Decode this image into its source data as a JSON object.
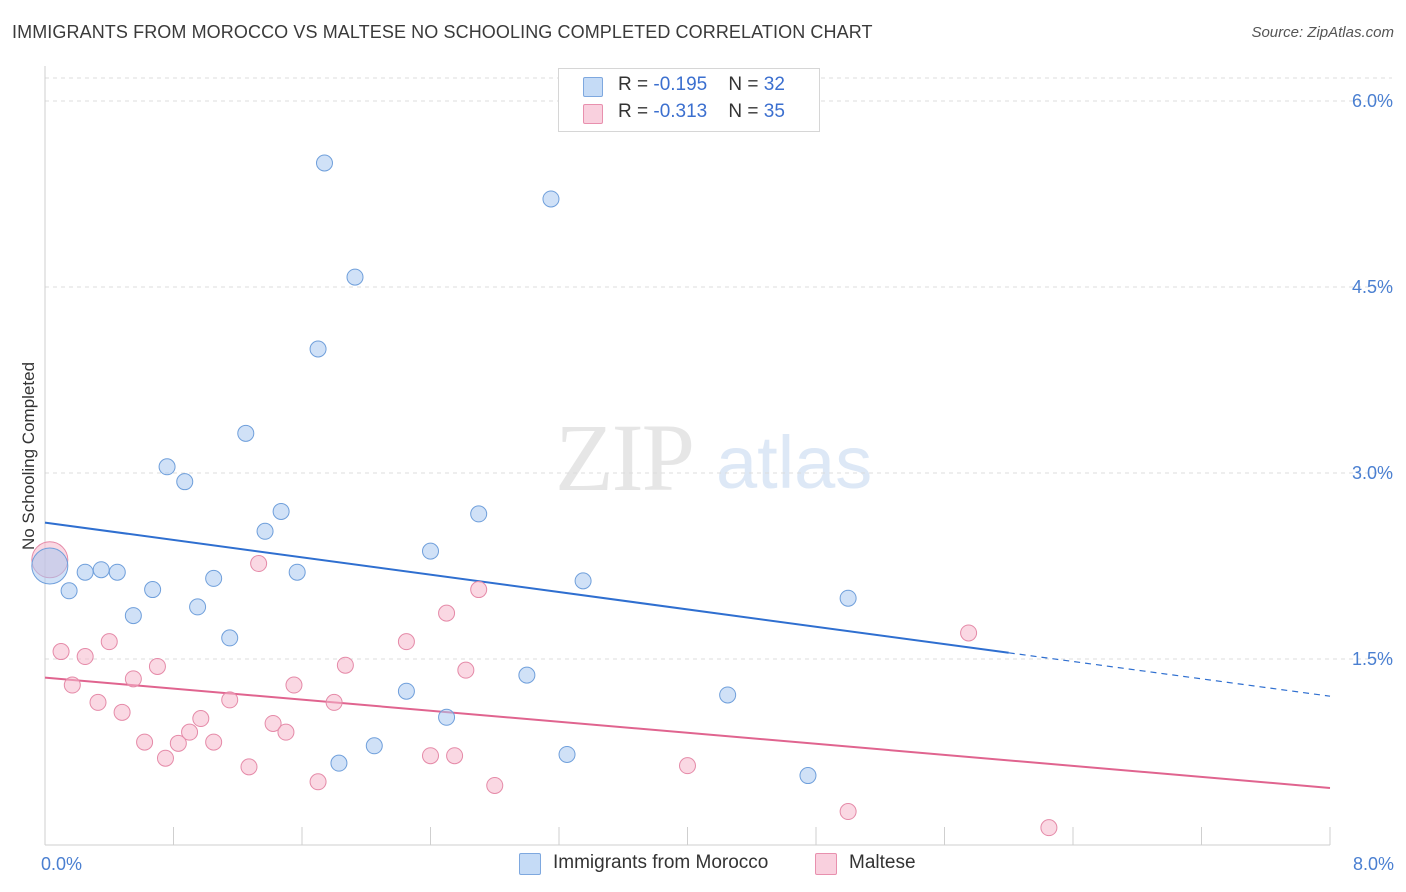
{
  "title": "IMMIGRANTS FROM MOROCCO VS MALTESE NO SCHOOLING COMPLETED CORRELATION CHART",
  "source": "Source: ZipAtlas.com",
  "watermark": {
    "zip": "ZIP",
    "atlas": "atlas"
  },
  "stats": [
    {
      "r_label": "R = ",
      "r_value": "-0.195",
      "n_label": "N = ",
      "n_value": "32",
      "color": "#aac8f0"
    },
    {
      "r_label": "R = ",
      "r_value": "-0.313",
      "n_label": "N = ",
      "n_value": "35",
      "color": "#f5b8cc"
    }
  ],
  "legend": [
    {
      "label": "Immigrants from Morocco",
      "color": "#aac8f0"
    },
    {
      "label": "Maltese",
      "color": "#f5b8cc"
    }
  ],
  "chart_data": {
    "type": "scatter",
    "title": "IMMIGRANTS FROM MOROCCO VS MALTESE NO SCHOOLING COMPLETED CORRELATION CHART",
    "xlabel": "",
    "ylabel": "No Schooling Completed",
    "xlim": [
      0,
      8
    ],
    "ylim": [
      0,
      6.25
    ],
    "x_tick_labels": [
      "0.0%",
      "8.0%"
    ],
    "y_tick_values": [
      1.5,
      3.0,
      4.5,
      6.0
    ],
    "y_tick_labels": [
      "1.5%",
      "3.0%",
      "4.5%",
      "6.0%"
    ],
    "grid": true,
    "legend_position": "bottom-center",
    "series": [
      {
        "name": "Immigrants from Morocco",
        "color": "#aac8f0",
        "stroke": "#6f9fdb",
        "line_color": "#2f6fd0",
        "trend": {
          "x_start": 0.0,
          "y_start": 2.6,
          "x_solid_end": 6.0,
          "y_solid_end": 1.55,
          "x_end": 8.0,
          "y_end": 1.2
        },
        "points": [
          {
            "x": 0.03,
            "y": 2.25,
            "size": 14
          },
          {
            "x": 0.15,
            "y": 2.05
          },
          {
            "x": 0.25,
            "y": 2.2
          },
          {
            "x": 0.35,
            "y": 2.22
          },
          {
            "x": 0.45,
            "y": 2.2
          },
          {
            "x": 0.55,
            "y": 1.85
          },
          {
            "x": 0.67,
            "y": 2.06
          },
          {
            "x": 0.76,
            "y": 3.05
          },
          {
            "x": 0.87,
            "y": 2.93
          },
          {
            "x": 0.95,
            "y": 1.92
          },
          {
            "x": 1.05,
            "y": 2.15
          },
          {
            "x": 1.15,
            "y": 1.67
          },
          {
            "x": 1.25,
            "y": 3.32
          },
          {
            "x": 1.37,
            "y": 2.53
          },
          {
            "x": 1.47,
            "y": 2.69
          },
          {
            "x": 1.57,
            "y": 2.2
          },
          {
            "x": 1.7,
            "y": 4.0
          },
          {
            "x": 1.74,
            "y": 5.5
          },
          {
            "x": 1.83,
            "y": 0.66
          },
          {
            "x": 1.93,
            "y": 4.58
          },
          {
            "x": 2.05,
            "y": 0.8
          },
          {
            "x": 2.25,
            "y": 1.24
          },
          {
            "x": 2.4,
            "y": 2.37
          },
          {
            "x": 2.5,
            "y": 1.03
          },
          {
            "x": 2.7,
            "y": 2.67
          },
          {
            "x": 3.0,
            "y": 1.37
          },
          {
            "x": 3.15,
            "y": 5.21
          },
          {
            "x": 3.25,
            "y": 0.73
          },
          {
            "x": 3.35,
            "y": 2.13
          },
          {
            "x": 4.25,
            "y": 1.21
          },
          {
            "x": 4.75,
            "y": 0.56
          },
          {
            "x": 5.0,
            "y": 1.99
          }
        ]
      },
      {
        "name": "Maltese",
        "color": "#f5b8cc",
        "stroke": "#e58aa8",
        "line_color": "#e0648f",
        "trend": {
          "x_start": 0.0,
          "y_start": 1.35,
          "x_end": 8.0,
          "y_end": 0.46
        },
        "points": [
          {
            "x": 0.03,
            "y": 2.3,
            "size": 14
          },
          {
            "x": 0.1,
            "y": 1.56
          },
          {
            "x": 0.17,
            "y": 1.29
          },
          {
            "x": 0.25,
            "y": 1.52
          },
          {
            "x": 0.33,
            "y": 1.15
          },
          {
            "x": 0.4,
            "y": 1.64
          },
          {
            "x": 0.48,
            "y": 1.07
          },
          {
            "x": 0.55,
            "y": 1.34
          },
          {
            "x": 0.62,
            "y": 0.83
          },
          {
            "x": 0.7,
            "y": 1.44
          },
          {
            "x": 0.75,
            "y": 0.7
          },
          {
            "x": 0.83,
            "y": 0.82
          },
          {
            "x": 0.9,
            "y": 0.91
          },
          {
            "x": 0.97,
            "y": 1.02
          },
          {
            "x": 1.05,
            "y": 0.83
          },
          {
            "x": 1.15,
            "y": 1.17
          },
          {
            "x": 1.27,
            "y": 0.63
          },
          {
            "x": 1.33,
            "y": 2.27
          },
          {
            "x": 1.42,
            "y": 0.98
          },
          {
            "x": 1.5,
            "y": 0.91
          },
          {
            "x": 1.55,
            "y": 1.29
          },
          {
            "x": 1.7,
            "y": 0.51
          },
          {
            "x": 1.8,
            "y": 1.15
          },
          {
            "x": 1.87,
            "y": 1.45
          },
          {
            "x": 2.25,
            "y": 1.64
          },
          {
            "x": 2.4,
            "y": 0.72
          },
          {
            "x": 2.5,
            "y": 1.87
          },
          {
            "x": 2.55,
            "y": 0.72
          },
          {
            "x": 2.62,
            "y": 1.41
          },
          {
            "x": 2.7,
            "y": 2.06
          },
          {
            "x": 2.8,
            "y": 0.48
          },
          {
            "x": 4.0,
            "y": 0.64
          },
          {
            "x": 5.0,
            "y": 0.27
          },
          {
            "x": 5.75,
            "y": 1.71
          },
          {
            "x": 6.25,
            "y": 0.14
          }
        ]
      }
    ]
  }
}
